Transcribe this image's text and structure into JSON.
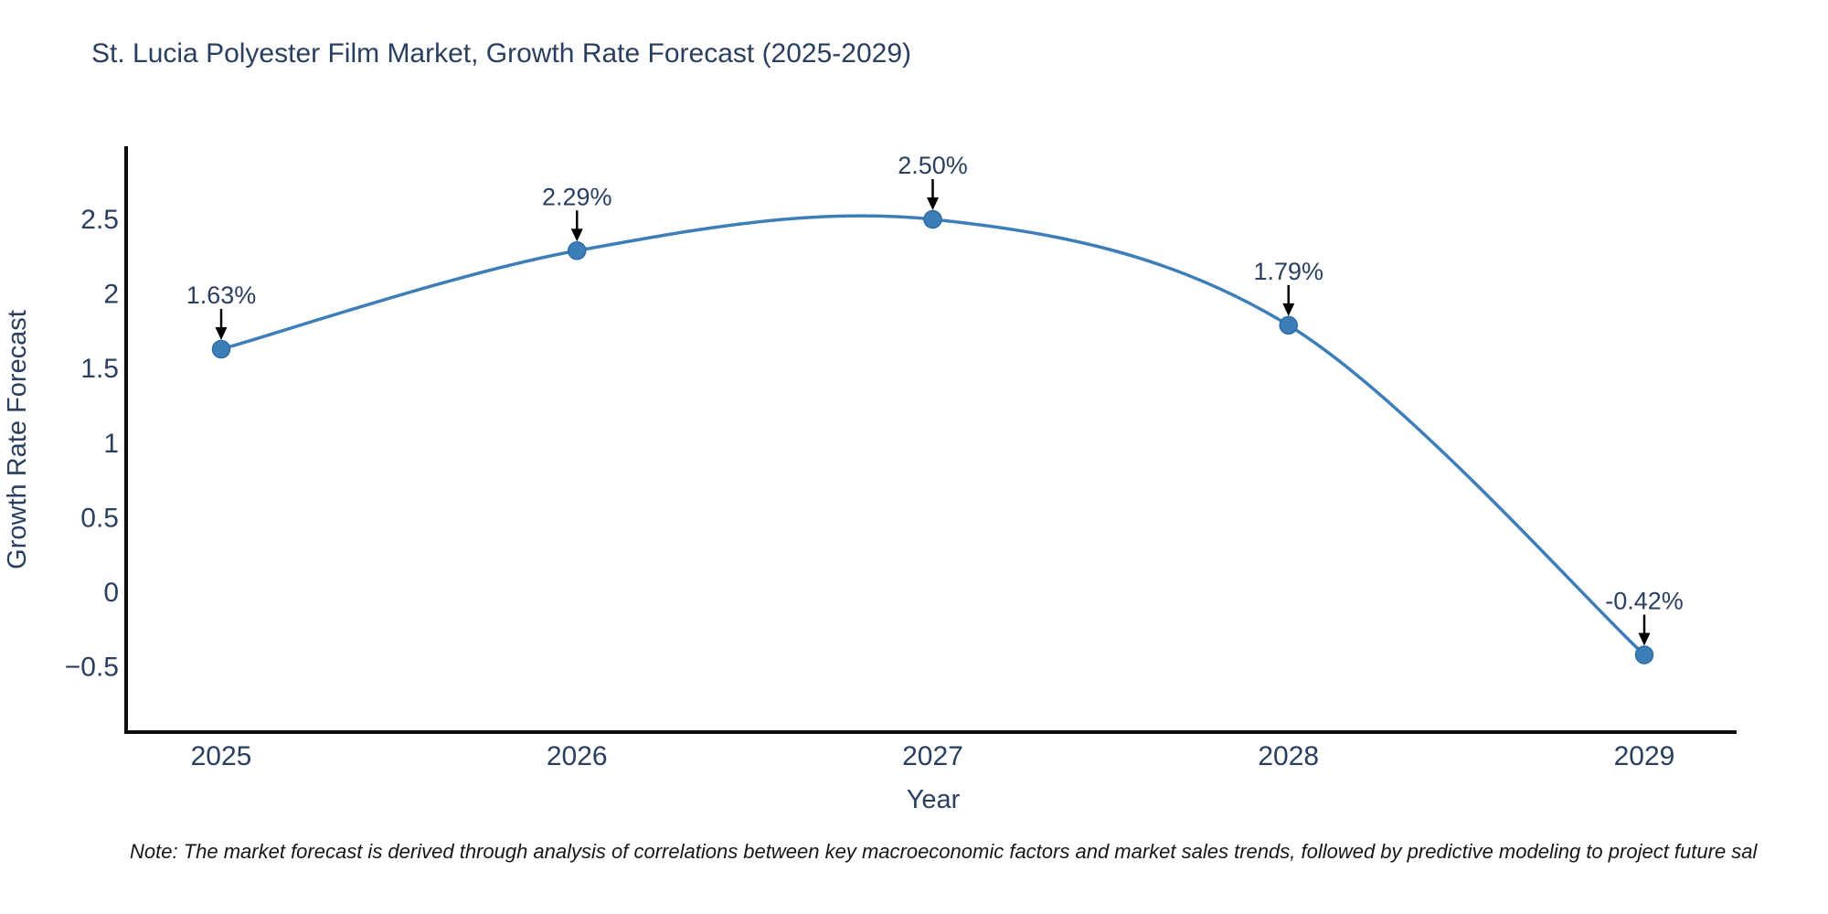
{
  "title": "St. Lucia Polyester Film Market, Growth Rate Forecast (2025-2029)",
  "note": "Note: The market forecast is derived through analysis of correlations between key macroeconomic factors and market sales trends, followed by predictive modeling to project future sal",
  "chart_data": {
    "type": "line",
    "title": "St. Lucia Polyester Film Market, Growth Rate Forecast (2025-2029)",
    "xlabel": "Year",
    "ylabel": "Growth Rate Forecast",
    "categories": [
      "2025",
      "2026",
      "2027",
      "2028",
      "2029"
    ],
    "series": [
      {
        "name": "Growth Rate Forecast",
        "values": [
          1.63,
          2.29,
          2.5,
          1.79,
          -0.42
        ],
        "point_labels": [
          "1.63%",
          "2.29%",
          "2.50%",
          "1.79%",
          "-0.42%"
        ]
      }
    ],
    "y_ticks": {
      "values": [
        2.5,
        2,
        1.5,
        1,
        0.5,
        0,
        -0.5
      ],
      "labels": [
        "2.5",
        "2",
        "1.5",
        "1",
        "0.5",
        "0",
        "−0.5"
      ]
    },
    "ylim": [
      -0.94,
      2.99
    ],
    "line_shape": "spline",
    "grid": false,
    "legend_visible": false,
    "colors": {
      "line": "#3d7eb8",
      "marker_fill": "#3d7eb8",
      "marker_stroke": "#2e6da4",
      "axis_line": "#0d0d0d",
      "tick_text": "#2a3f5f",
      "annotation_text": "#2a3f5f",
      "annotation_arrow": "#000000",
      "background": "#ffffff"
    }
  }
}
